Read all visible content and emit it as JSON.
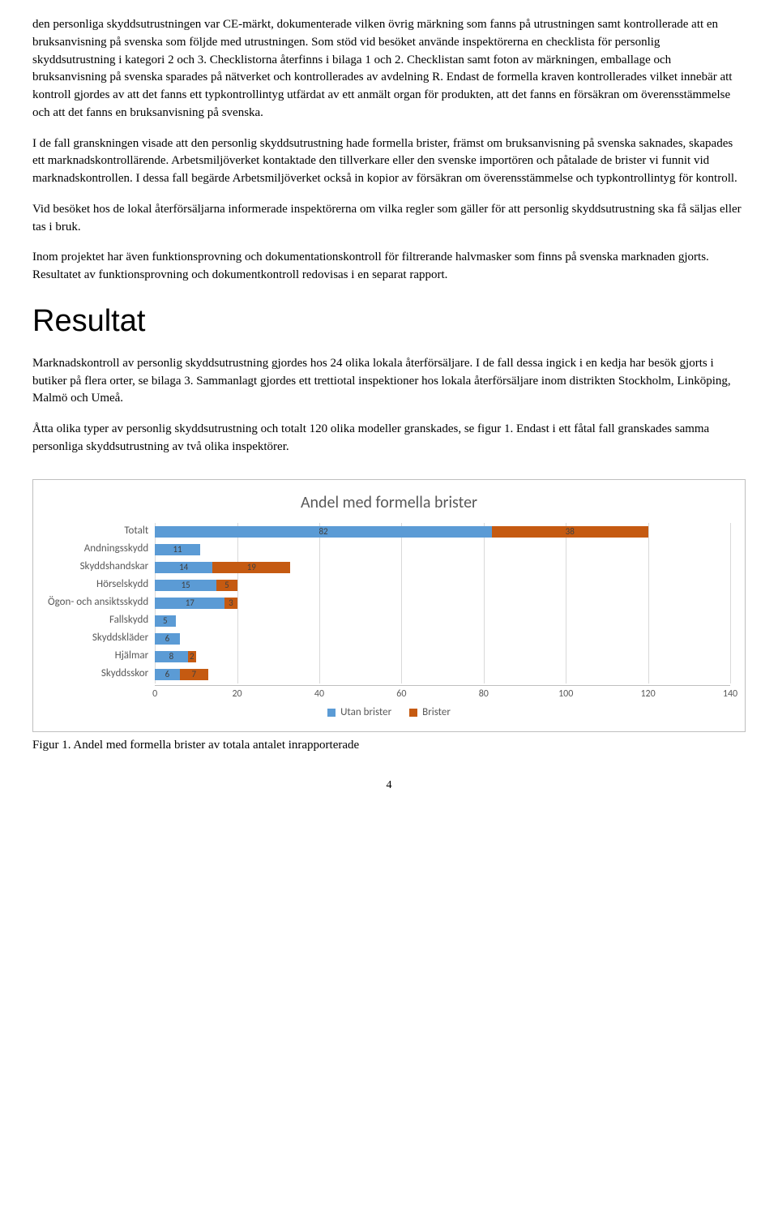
{
  "paragraphs": {
    "p1": "den personliga skyddsutrustningen var CE-märkt, dokumenterade vilken övrig märkning som fanns på utrustningen samt kontrollerade att en bruksanvisning på svenska som följde med utrustningen. Som stöd vid besöket använde inspektörerna en checklista för personlig skyddsutrustning i kategori 2 och 3. Checklistorna återfinns i bilaga 1 och 2. Checklistan samt foton av märkningen, emballage och bruksanvisning på svenska sparades på nätverket och kontrollerades av avdelning R. Endast de formella kraven kontrollerades vilket innebär att kontroll gjordes av att det fanns ett typkontrollintyg utfärdat av ett anmält organ för produkten, att det fanns en försäkran om överensstämmelse och att det fanns en bruksanvisning på svenska.",
    "p2": "I de fall granskningen visade att den personlig skyddsutrustning hade formella brister, främst om bruksanvisning på svenska saknades, skapades ett marknadskontrollärende. Arbetsmiljöverket kontaktade den tillverkare eller den svenske importören och påtalade de brister vi funnit vid marknadskontrollen. I dessa fall begärde Arbetsmiljöverket också in kopior av försäkran om överensstämmelse och typkontrollintyg för kontroll.",
    "p3": "Vid besöket hos de lokal återförsäljarna informerade inspektörerna om vilka regler som gäller för att personlig skyddsutrustning ska få säljas eller tas i bruk.",
    "p4": "Inom projektet har även funktionsprovning och dokumentationskontroll för filtrerande halvmasker som finns på svenska marknaden gjorts. Resultatet av funktionsprovning och dokumentkontroll redovisas i en separat rapport.",
    "p5": "Marknadskontroll av personlig skyddsutrustning gjordes hos 24 olika lokala återförsäljare. I de fall dessa ingick i en kedja har besök gjorts i butiker på flera orter, se bilaga 3. Sammanlagt gjordes ett trettiotal inspektioner hos lokala återförsäljare inom distrikten Stockholm, Linköping, Malmö och Umeå.",
    "p6": "Åtta olika typer av personlig skyddsutrustning och totalt 120 olika modeller granskades, se figur 1. Endast i ett fåtal fall granskades samma personliga skyddsutrustning av två olika inspektörer."
  },
  "heading_resultat": "Resultat",
  "chart": {
    "type": "stacked-bar-horizontal",
    "title": "Andel med formella brister",
    "xlim": [
      0,
      140
    ],
    "xtick_step": 20,
    "xticks": [
      0,
      20,
      40,
      60,
      80,
      100,
      120,
      140
    ],
    "colors": {
      "utan_brister": "#5b9bd5",
      "brister": "#c55a11",
      "grid": "#d9d9d9",
      "axis": "#bfbfbf",
      "text": "#595959",
      "background": "#ffffff"
    },
    "legend": {
      "utan_brister": "Utan brister",
      "brister": "Brister"
    },
    "categories": [
      {
        "label": "Totalt",
        "utan_brister": 82,
        "brister": 38
      },
      {
        "label": "Andningsskydd",
        "utan_brister": 11,
        "brister": 0
      },
      {
        "label": "Skyddshandskar",
        "utan_brister": 14,
        "brister": 19
      },
      {
        "label": "Hörselskydd",
        "utan_brister": 15,
        "brister": 5
      },
      {
        "label": "Ögon- och ansiktsskydd",
        "utan_brister": 17,
        "brister": 3
      },
      {
        "label": "Fallskydd",
        "utan_brister": 5,
        "brister": 0
      },
      {
        "label": "Skyddskläder",
        "utan_brister": 6,
        "brister": 0
      },
      {
        "label": "Hjälmar",
        "utan_brister": 8,
        "brister": 2
      },
      {
        "label": "Skyddsskor",
        "utan_brister": 6,
        "brister": 7
      }
    ],
    "title_fontsize": 20,
    "label_fontsize": 13,
    "value_fontsize": 11
  },
  "figure_caption": "Figur 1. Andel med formella brister av totala antalet inrapporterade",
  "page_number": "4"
}
